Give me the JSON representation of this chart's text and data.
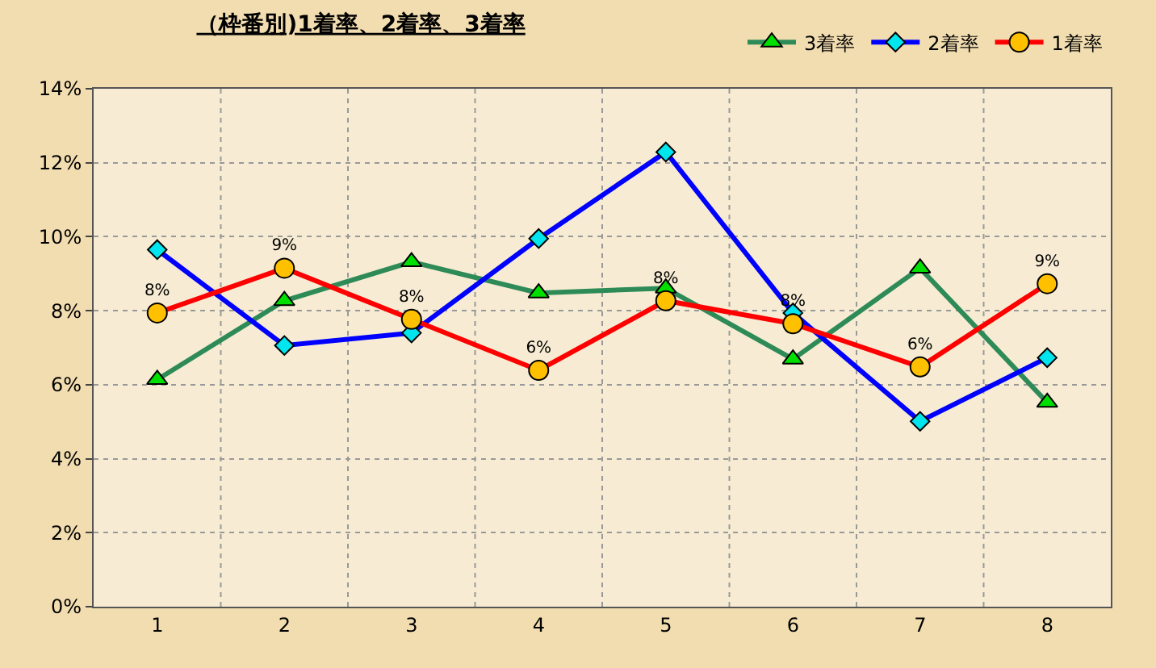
{
  "chart_data": {
    "type": "line",
    "title": "（枠番別)1着率、2着率、3着率",
    "categories": [
      "1",
      "2",
      "3",
      "4",
      "5",
      "6",
      "7",
      "8"
    ],
    "series": [
      {
        "name": "3着率",
        "color": "#2e8b57",
        "marker": "triangle",
        "values": [
          6.14,
          8.27,
          9.32,
          8.48,
          8.61,
          6.69,
          9.15,
          5.52
        ]
      },
      {
        "name": "2着率",
        "color": "#0000ff",
        "marker": "diamond",
        "values": [
          9.65,
          7.06,
          7.4,
          9.95,
          12.29,
          7.94,
          5.01,
          6.73
        ]
      },
      {
        "name": "1着率",
        "color": "#ff0000",
        "marker": "circle",
        "values": [
          7.94,
          9.15,
          7.77,
          6.39,
          8.27,
          7.65,
          6.48,
          8.73
        ],
        "value_labels": [
          "8%",
          "9%",
          "8%",
          "6%",
          "8%",
          "8%",
          "6%",
          "9%"
        ]
      }
    ],
    "ylim": [
      0,
      14
    ],
    "yticks": [
      {
        "value": 0,
        "label": "0%"
      },
      {
        "value": 2,
        "label": "2%"
      },
      {
        "value": 4,
        "label": "4%"
      },
      {
        "value": 6,
        "label": "6%"
      },
      {
        "value": 8,
        "label": "8%"
      },
      {
        "value": 10,
        "label": "10%"
      },
      {
        "value": 12,
        "label": "12%"
      },
      {
        "value": 14,
        "label": "14%"
      }
    ],
    "grid": true,
    "legend": "top right"
  }
}
